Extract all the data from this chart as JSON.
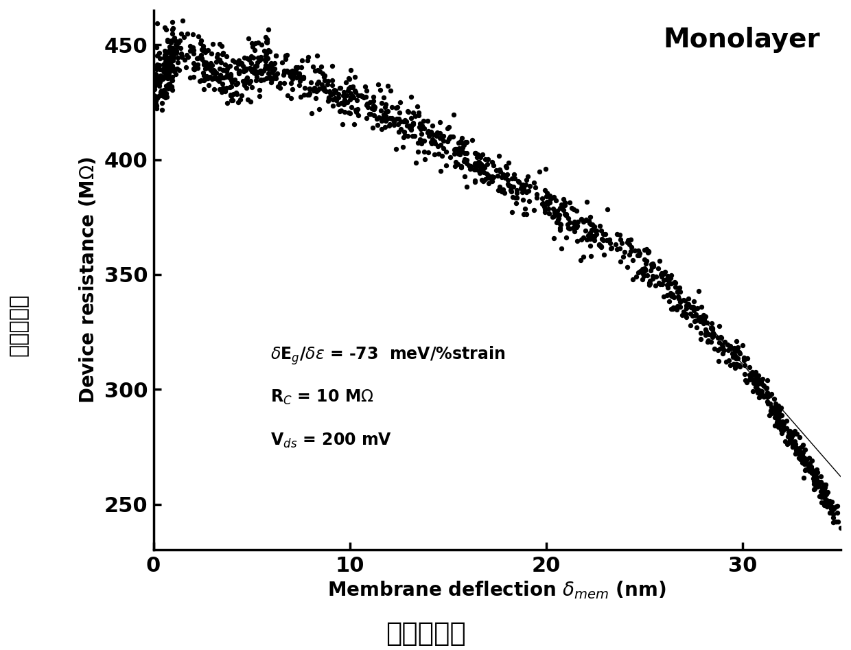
{
  "title": "Monolayer",
  "xlim": [
    0,
    35
  ],
  "ylim": [
    230,
    465
  ],
  "xticks": [
    0,
    10,
    20,
    30
  ],
  "yticks": [
    250,
    300,
    350,
    400,
    450
  ],
  "point_color": "#000000",
  "point_size": 28,
  "background_color": "#ffffff",
  "seed": 42,
  "ylabel_cn": "器件电阻值",
  "xlabel_cn": "薄膜形变量"
}
